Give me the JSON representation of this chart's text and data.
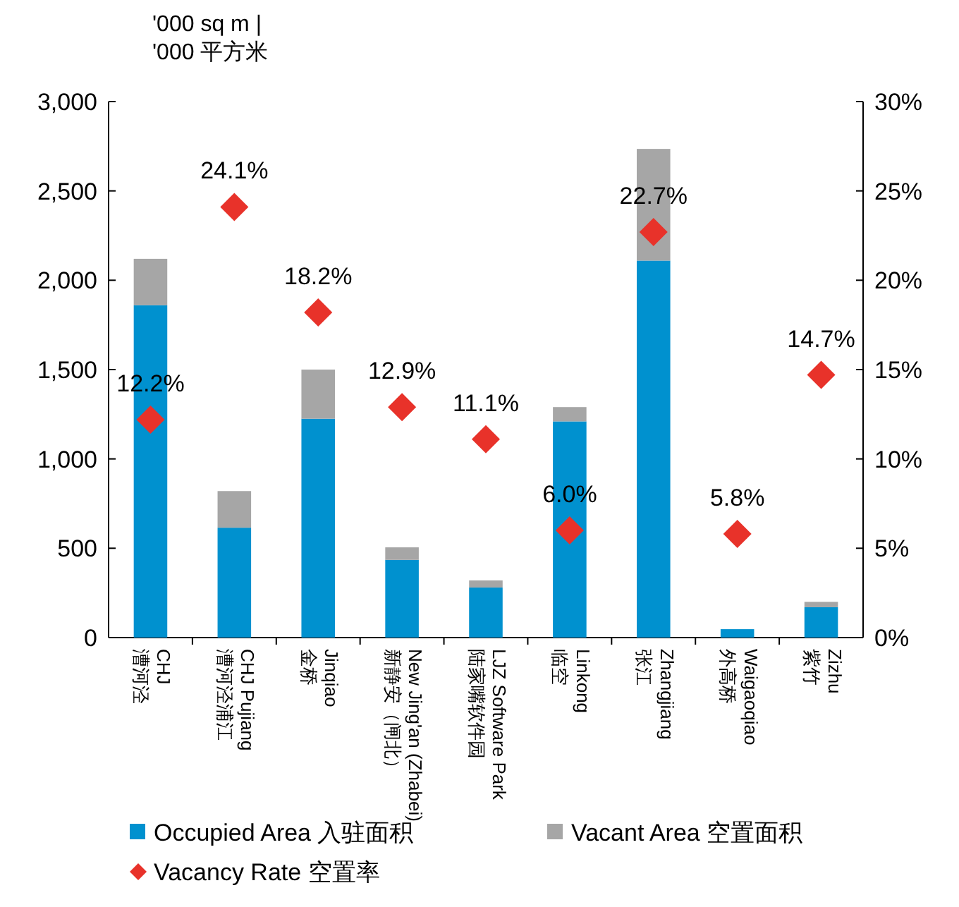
{
  "chart_data": {
    "type": "bar",
    "stacked": true,
    "ylabel": "'000 sq m |\n'000 平方米",
    "legend": "bottom",
    "categories": [
      "CHJ\n漕河泾",
      "CHJ Pujiang\n漕河泾浦江",
      "Jinqiao\n金桥",
      "New Jing'an (Zhabei)\n新静安（闸北）",
      "LJZ Software Park\n陆家嘴软件园",
      "Linkong\n临空",
      "Zhangjiang\n张江",
      "Waigaoqiao\n外高桥",
      "Zizhu\n紫竹"
    ],
    "series": [
      {
        "name": "Occupied Area 入驻面积",
        "color": "#0091cf",
        "values": [
          1860,
          615,
          1225,
          435,
          280,
          1210,
          2110,
          47,
          170
        ]
      },
      {
        "name": "Vacant Area 空置面积",
        "color": "#a6a6a6",
        "values": [
          260,
          205,
          275,
          70,
          40,
          80,
          625,
          null,
          30
        ]
      },
      {
        "name": "Vacancy Rate 空置率",
        "type": "scatter",
        "axis": "y2",
        "marker": "diamond",
        "color": "#e8322a",
        "values": [
          12.2,
          24.1,
          18.2,
          12.9,
          11.1,
          6.0,
          22.7,
          5.8,
          14.7
        ],
        "value_labels": [
          "12.2%",
          "24.1%",
          "18.2%",
          "12.9%",
          "11.1%",
          "6.0%",
          "22.7%",
          "5.8%",
          "14.7%"
        ]
      }
    ],
    "ylim": [
      0,
      3000
    ],
    "yticks": [
      {
        "value": 0,
        "label": "0"
      },
      {
        "value": 500,
        "label": "500"
      },
      {
        "value": 1000,
        "label": "1,000"
      },
      {
        "value": 1500,
        "label": "1,500"
      },
      {
        "value": 2000,
        "label": "2,000"
      },
      {
        "value": 2500,
        "label": "2,500"
      },
      {
        "value": 3000,
        "label": "3,000"
      }
    ],
    "y2lim": [
      0,
      30
    ],
    "y2ticks": [
      {
        "value": 0,
        "label": "0%"
      },
      {
        "value": 5,
        "label": "5%"
      },
      {
        "value": 10,
        "label": "10%"
      },
      {
        "value": 15,
        "label": "15%"
      },
      {
        "value": 20,
        "label": "20%"
      },
      {
        "value": 25,
        "label": "25%"
      },
      {
        "value": 30,
        "label": "30%"
      }
    ]
  }
}
